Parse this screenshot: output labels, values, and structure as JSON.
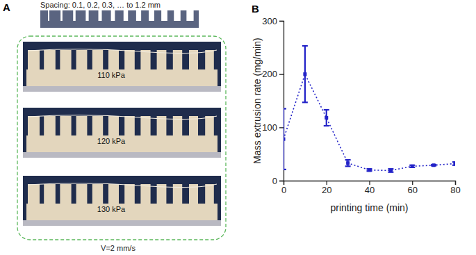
{
  "panel_a": {
    "label": "A",
    "spacing_text": "Spacing: 0.1, 0.2, 0.3, … to 1.2 mm",
    "samples": [
      {
        "label": "110 kPa"
      },
      {
        "label": "120 kPa"
      },
      {
        "label": "130 kPa"
      }
    ],
    "speed_text": "V=2 mm/s"
  },
  "chart_data": {
    "type": "line",
    "title": "B",
    "x_label": "printing time (min)",
    "y_label": "Mass extrusion rate (mg/min)",
    "x": [
      0,
      10,
      20,
      30,
      40,
      50,
      60,
      70,
      80
    ],
    "values": [
      78,
      200,
      118,
      33,
      20,
      19,
      27,
      29,
      32
    ],
    "errors": [
      57,
      53,
      15,
      6,
      2,
      3,
      2,
      1,
      3
    ],
    "color": "#2323c8",
    "marker": "square",
    "line_style": "dotted",
    "xlim": [
      0,
      80
    ],
    "xticks": [
      0,
      20,
      40,
      60,
      80
    ],
    "ylim": [
      0,
      300
    ],
    "yticks": [
      0,
      100,
      200,
      300
    ]
  }
}
